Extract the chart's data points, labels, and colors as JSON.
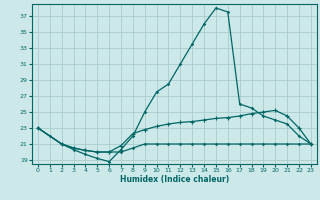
{
  "xlabel": "Humidex (Indice chaleur)",
  "bg_color": "#cce8e8",
  "grid_color": "#aacccc",
  "line_color": "#006666",
  "xlim": [
    -0.5,
    23.5
  ],
  "ylim": [
    18.5,
    38.5
  ],
  "xticks": [
    0,
    1,
    2,
    3,
    4,
    5,
    6,
    7,
    8,
    9,
    10,
    11,
    12,
    13,
    14,
    15,
    16,
    17,
    18,
    19,
    20,
    21,
    22,
    23
  ],
  "yticks": [
    19,
    21,
    23,
    25,
    27,
    29,
    31,
    33,
    35,
    37
  ],
  "series1": [
    [
      0,
      23
    ],
    [
      1,
      22
    ],
    [
      2,
      21
    ],
    [
      3,
      20.3
    ],
    [
      4,
      19.7
    ],
    [
      5,
      19.2
    ],
    [
      6,
      18.8
    ],
    [
      7,
      20.3
    ],
    [
      8,
      22
    ],
    [
      9,
      25
    ],
    [
      10,
      27.5
    ],
    [
      11,
      28.5
    ],
    [
      12,
      31
    ],
    [
      13,
      33.5
    ],
    [
      14,
      36
    ],
    [
      15,
      38
    ],
    [
      16,
      37.5
    ],
    [
      17,
      26
    ],
    [
      18,
      25.5
    ],
    [
      19,
      24.5
    ],
    [
      20,
      24
    ],
    [
      21,
      23.5
    ],
    [
      22,
      22
    ],
    [
      23,
      21
    ]
  ],
  "series2": [
    [
      0,
      23
    ],
    [
      2,
      21
    ],
    [
      3,
      20.5
    ],
    [
      4,
      20.2
    ],
    [
      5,
      20
    ],
    [
      6,
      20
    ],
    [
      7,
      20.8
    ],
    [
      8,
      22.3
    ],
    [
      9,
      22.8
    ],
    [
      10,
      23.2
    ],
    [
      11,
      23.5
    ],
    [
      12,
      23.7
    ],
    [
      13,
      23.8
    ],
    [
      14,
      24
    ],
    [
      15,
      24.2
    ],
    [
      16,
      24.3
    ],
    [
      17,
      24.5
    ],
    [
      18,
      24.8
    ],
    [
      19,
      25
    ],
    [
      20,
      25.2
    ],
    [
      21,
      24.5
    ],
    [
      22,
      23
    ],
    [
      23,
      21
    ]
  ],
  "series3": [
    [
      0,
      23
    ],
    [
      2,
      21
    ],
    [
      3,
      20.5
    ],
    [
      4,
      20.2
    ],
    [
      5,
      20
    ],
    [
      6,
      20
    ],
    [
      7,
      20
    ],
    [
      8,
      20.5
    ],
    [
      9,
      21
    ],
    [
      10,
      21
    ],
    [
      11,
      21
    ],
    [
      12,
      21
    ],
    [
      13,
      21
    ],
    [
      14,
      21
    ],
    [
      15,
      21
    ],
    [
      16,
      21
    ],
    [
      17,
      21
    ],
    [
      18,
      21
    ],
    [
      19,
      21
    ],
    [
      20,
      21
    ],
    [
      21,
      21
    ],
    [
      22,
      21
    ],
    [
      23,
      21
    ]
  ]
}
